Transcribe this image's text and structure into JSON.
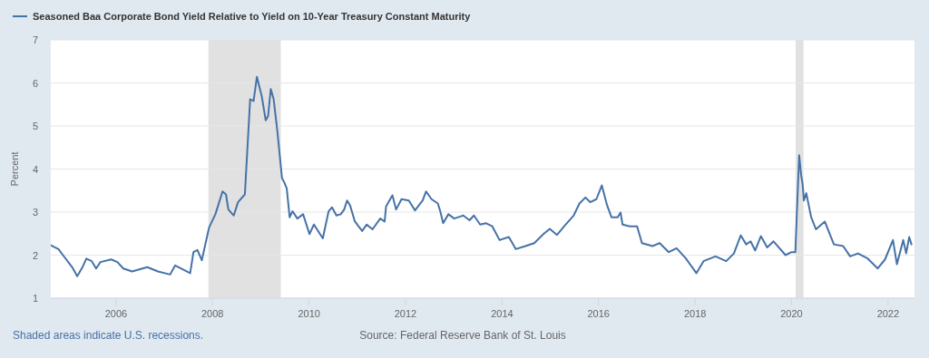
{
  "chart_data": {
    "type": "line",
    "ylabel": "Percent",
    "legend": "top",
    "grid": "y",
    "xlim": [
      "2004-08-25",
      "2022-07-20"
    ],
    "xticks": [
      "2006",
      "2008",
      "2010",
      "2012",
      "2014",
      "2016",
      "2018",
      "2020",
      "2022"
    ],
    "ylim": [
      1,
      7
    ],
    "yticks": [
      1,
      2,
      3,
      4,
      5,
      6,
      7
    ],
    "bands": [
      {
        "axis": "x",
        "from": "2007-12-01",
        "to": "2009-06-01",
        "color": "#e1e1e1"
      },
      {
        "axis": "x",
        "from": "2020-02-01",
        "to": "2020-04-01",
        "color": "#e1e1e1"
      }
    ],
    "annotations": [
      "Shaded areas indicate U.S. recessions.",
      "Source: Federal Reserve Bank of St. Louis"
    ],
    "series": [
      {
        "name": "Seasoned Baa Corporate Bond Yield Relative to Yield on 10-Year Treasury Constant Maturity",
        "color": "#4572a7",
        "x": [
          "2004-08-25",
          "2004-10-22",
          "2004-11-25",
          "2005-02-03",
          "2005-03-13",
          "2005-04-22",
          "2005-05-21",
          "2005-07-01",
          "2005-08-03",
          "2005-09-05",
          "2005-11-25",
          "2006-01-11",
          "2006-02-25",
          "2006-05-03",
          "2006-08-25",
          "2006-11-14",
          "2007-02-14",
          "2007-03-24",
          "2007-07-16",
          "2007-08-10",
          "2007-09-09",
          "2007-10-12",
          "2007-12-06",
          "2008-01-23",
          "2008-03-17",
          "2008-04-12",
          "2008-04-30",
          "2008-06-10",
          "2008-07-12",
          "2008-09-02",
          "2008-10-12",
          "2008-11-07",
          "2008-12-02",
          "2009-01-08",
          "2009-02-07",
          "2009-02-25",
          "2009-03-17",
          "2009-04-08",
          "2009-05-07",
          "2009-06-10",
          "2009-06-27",
          "2009-07-16",
          "2009-08-07",
          "2009-08-29",
          "2009-10-04",
          "2009-11-17",
          "2010-01-04",
          "2010-02-07",
          "2010-04-15",
          "2010-05-29",
          "2010-06-24",
          "2010-07-27",
          "2010-08-29",
          "2010-09-24",
          "2010-10-16",
          "2010-11-07",
          "2010-12-14",
          "2011-02-07",
          "2011-03-13",
          "2011-04-26",
          "2011-06-24",
          "2011-07-27",
          "2011-08-07",
          "2011-09-24",
          "2011-10-22",
          "2011-12-02",
          "2012-01-26",
          "2012-03-13",
          "2012-05-10",
          "2012-06-05",
          "2012-07-16",
          "2012-09-02",
          "2012-09-20",
          "2012-10-12",
          "2012-11-21",
          "2013-01-04",
          "2013-03-13",
          "2013-04-30",
          "2013-06-02",
          "2013-07-19",
          "2013-09-02",
          "2013-10-19",
          "2013-12-13",
          "2014-02-21",
          "2014-04-15",
          "2014-06-27",
          "2014-09-02",
          "2014-11-10",
          "2014-12-28",
          "2015-02-21",
          "2015-04-19",
          "2015-06-27",
          "2015-08-10",
          "2015-09-24",
          "2015-10-30",
          "2015-12-16",
          "2016-01-26",
          "2016-03-06",
          "2016-04-08",
          "2016-05-25",
          "2016-06-16",
          "2016-07-01",
          "2016-08-25",
          "2016-10-19",
          "2016-11-25",
          "2017-02-14",
          "2017-04-08",
          "2017-06-16",
          "2017-08-14",
          "2017-10-22",
          "2018-01-11",
          "2018-03-06",
          "2018-06-05",
          "2018-08-25",
          "2018-10-22",
          "2018-12-13",
          "2019-01-23",
          "2019-02-25",
          "2019-04-01",
          "2019-05-14",
          "2019-07-01",
          "2019-08-18",
          "2019-11-17",
          "2020-01-01",
          "2020-01-30",
          "2020-02-28",
          "2020-03-14",
          "2020-03-25",
          "2020-04-04",
          "2020-04-22",
          "2020-05-29",
          "2020-07-04",
          "2020-09-09",
          "2020-11-17",
          "2021-01-26",
          "2021-03-20",
          "2021-05-18",
          "2021-07-27",
          "2021-10-15",
          "2021-12-09",
          "2022-02-07",
          "2022-03-09",
          "2022-04-26",
          "2022-05-18",
          "2022-06-10",
          "2022-06-27"
        ],
        "values": [
          2.23,
          2.14,
          2.0,
          1.72,
          1.51,
          1.72,
          1.92,
          1.86,
          1.69,
          1.84,
          1.9,
          1.84,
          1.69,
          1.62,
          1.72,
          1.62,
          1.55,
          1.76,
          1.58,
          2.07,
          2.12,
          1.88,
          2.64,
          2.95,
          3.48,
          3.41,
          3.06,
          2.92,
          3.23,
          3.41,
          5.62,
          5.58,
          6.14,
          5.69,
          5.13,
          5.23,
          5.86,
          5.62,
          4.85,
          3.79,
          3.69,
          3.55,
          2.88,
          3.02,
          2.85,
          2.95,
          2.49,
          2.71,
          2.39,
          3.02,
          3.11,
          2.92,
          2.95,
          3.06,
          3.27,
          3.16,
          2.78,
          2.56,
          2.71,
          2.6,
          2.85,
          2.78,
          3.13,
          3.39,
          3.06,
          3.3,
          3.27,
          3.04,
          3.27,
          3.48,
          3.3,
          3.2,
          3.02,
          2.74,
          2.95,
          2.85,
          2.92,
          2.81,
          2.92,
          2.71,
          2.74,
          2.67,
          2.35,
          2.42,
          2.14,
          2.21,
          2.28,
          2.49,
          2.61,
          2.47,
          2.68,
          2.92,
          3.2,
          3.34,
          3.23,
          3.3,
          3.62,
          3.16,
          2.88,
          2.88,
          2.99,
          2.71,
          2.67,
          2.67,
          2.28,
          2.21,
          2.28,
          2.07,
          2.16,
          1.93,
          1.58,
          1.86,
          1.97,
          1.86,
          2.04,
          2.46,
          2.25,
          2.32,
          2.11,
          2.44,
          2.18,
          2.32,
          2.0,
          2.07,
          2.07,
          4.32,
          3.86,
          3.65,
          3.27,
          3.44,
          2.88,
          2.6,
          2.78,
          2.25,
          2.21,
          1.97,
          2.04,
          1.93,
          1.69,
          1.9,
          2.35,
          1.79,
          2.35,
          2.04,
          2.42,
          2.25
        ]
      }
    ]
  }
}
